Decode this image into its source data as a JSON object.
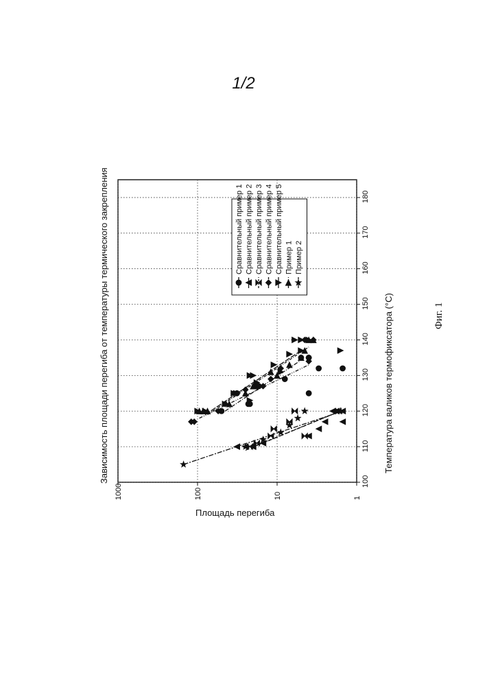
{
  "page": {
    "sheet_number": "1/2",
    "figure_caption": "Фиг. 1"
  },
  "chart_data": {
    "type": "scatter",
    "title": "Зависимость площади перегиба от температуры термического закрепления",
    "xlabel": "Температура валиков термофиксатора (°C)",
    "ylabel": "Площадь перегиба",
    "xlim": [
      100,
      185
    ],
    "ylim": [
      1,
      1000
    ],
    "y_scale": "log",
    "x_ticks": [
      "100",
      "110",
      "120",
      "130",
      "140",
      "150",
      "160",
      "170",
      "180"
    ],
    "y_ticks": [
      "1",
      "10",
      "100",
      "1000"
    ],
    "grid": "dotted",
    "orientation": "rotated-90-ccw",
    "legend_position": "top-right",
    "series": [
      {
        "name": "Сравнительный пример 1",
        "marker": "circle",
        "points": [
          [
            120,
            50
          ],
          [
            122,
            23
          ],
          [
            122,
            22
          ],
          [
            125,
            32
          ],
          [
            125,
            4
          ],
          [
            127,
            18
          ],
          [
            127,
            17
          ],
          [
            129,
            8
          ],
          [
            132,
            3
          ],
          [
            132,
            1.5
          ],
          [
            135,
            5
          ],
          [
            135,
            4
          ]
        ],
        "fit": [
          [
            120,
            45
          ],
          [
            135,
            4.5
          ]
        ]
      },
      {
        "name": "Сравнительный пример 2",
        "marker": "triangle-up",
        "points": [
          [
            110,
            32
          ],
          [
            110,
            25
          ],
          [
            110,
            20
          ],
          [
            111,
            15
          ],
          [
            113,
            4
          ],
          [
            115,
            3
          ],
          [
            117,
            2.5
          ],
          [
            117,
            1.5
          ],
          [
            120,
            2
          ],
          [
            120,
            1.8
          ],
          [
            120,
            1.5
          ]
        ],
        "fit": [
          [
            109,
            25
          ],
          [
            120,
            1.6
          ]
        ]
      },
      {
        "name": "Сравнительный пример 3",
        "marker": "hourglass",
        "points": [
          [
            110,
            22
          ],
          [
            111,
            18
          ],
          [
            113,
            12
          ],
          [
            113,
            4.5
          ],
          [
            115,
            11
          ],
          [
            117,
            7
          ],
          [
            120,
            6
          ],
          [
            120,
            1.7
          ]
        ],
        "fit": [
          [
            110,
            20
          ],
          [
            120,
            1.6
          ]
        ]
      },
      {
        "name": "Сравнительный пример 4",
        "marker": "diamond",
        "points": [
          [
            117,
            120
          ],
          [
            117,
            110
          ],
          [
            120,
            55
          ],
          [
            122,
            45
          ],
          [
            125,
            35
          ],
          [
            126,
            25
          ],
          [
            127,
            15
          ],
          [
            129,
            12
          ],
          [
            132,
            9
          ],
          [
            134,
            4
          ],
          [
            135,
            4
          ],
          [
            140,
            3.5
          ],
          [
            140,
            4.5
          ]
        ],
        "fit": [
          [
            118,
            95
          ],
          [
            133,
            4
          ]
        ]
      },
      {
        "name": "Сравнительный пример 5",
        "marker": "triangle-down",
        "points": [
          [
            120,
            80
          ],
          [
            120,
            100
          ],
          [
            122,
            45
          ],
          [
            123,
            22
          ],
          [
            125,
            35
          ],
          [
            128,
            18
          ],
          [
            130,
            22
          ],
          [
            130,
            20
          ],
          [
            131,
            9
          ],
          [
            133,
            11
          ],
          [
            136,
            7
          ],
          [
            137,
            5
          ],
          [
            137,
            1.6
          ],
          [
            140,
            4
          ],
          [
            140,
            5
          ],
          [
            140,
            6
          ]
        ],
        "fit": [
          [
            119,
            80
          ],
          [
            137,
            5
          ]
        ]
      },
      {
        "name": "Пример 1",
        "marker": "triangle-right",
        "points": [
          [
            120,
            95
          ],
          [
            120,
            85
          ],
          [
            120,
            75
          ],
          [
            122,
            40
          ],
          [
            125,
            25
          ],
          [
            127,
            20
          ],
          [
            130,
            10
          ],
          [
            131,
            12
          ],
          [
            133,
            7
          ],
          [
            135,
            5
          ],
          [
            137,
            4.5
          ],
          [
            140,
            3.5
          ],
          [
            140,
            4
          ]
        ],
        "fit": [
          [
            119,
            75
          ],
          [
            138,
            4
          ]
        ]
      },
      {
        "name": "Пример 2",
        "marker": "star",
        "points": [
          [
            105,
            150
          ],
          [
            110,
            25
          ],
          [
            110,
            20
          ],
          [
            112,
            15
          ],
          [
            114,
            9
          ],
          [
            116,
            7
          ],
          [
            118,
            5.5
          ],
          [
            120,
            4.5
          ],
          [
            120,
            1.6
          ]
        ],
        "fit": [
          [
            105,
            150
          ],
          [
            120,
            1.5
          ]
        ]
      }
    ]
  }
}
